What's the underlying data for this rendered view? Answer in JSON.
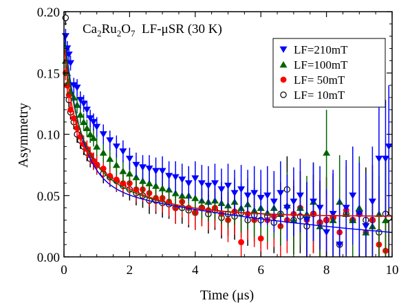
{
  "chart_data": {
    "type": "scatter",
    "title": "Ca₂Ru₂O₇ LF-μSR (30 K)",
    "title_parts": {
      "main": "Ca",
      "sub1": "2",
      "mid": "Ru",
      "sub2": "2",
      "after": "O",
      "sub3": "7",
      "rest": "  LF-μSR (30 K)"
    },
    "xlabel": "Time  (μs)",
    "ylabel": "Asymmetry",
    "xlim": [
      0,
      10
    ],
    "ylim": [
      0,
      0.2
    ],
    "xticks": [
      0,
      2,
      4,
      6,
      8,
      10
    ],
    "xtick_labels": [
      "0",
      "2",
      "4",
      "6",
      "8",
      "10"
    ],
    "yticks": [
      0,
      0.05,
      0.1,
      0.15,
      0.2
    ],
    "ytick_labels": [
      "0.00",
      "0.05",
      "0.10",
      "0.15",
      "0.20"
    ],
    "grid": false,
    "legend_position": "top-right",
    "series": [
      {
        "name": "LF=210mT",
        "color": "#0000ff",
        "marker": "triangle-down",
        "fit": {
          "A0": 0.185,
          "Aslow": 0.06,
          "lambda_fast": 2.0,
          "lambda_slow": 0.11,
          "background": 0.0
        },
        "points": [
          [
            0.05,
            0.18,
            0.006
          ],
          [
            0.1,
            0.17,
            0.006
          ],
          [
            0.15,
            0.165,
            0.006
          ],
          [
            0.2,
            0.158,
            0.006
          ],
          [
            0.3,
            0.14,
            0.006
          ],
          [
            0.4,
            0.138,
            0.007
          ],
          [
            0.5,
            0.128,
            0.007
          ],
          [
            0.6,
            0.125,
            0.007
          ],
          [
            0.7,
            0.12,
            0.007
          ],
          [
            0.8,
            0.113,
            0.007
          ],
          [
            0.9,
            0.11,
            0.007
          ],
          [
            1.0,
            0.106,
            0.008
          ],
          [
            1.2,
            0.1,
            0.008
          ],
          [
            1.4,
            0.095,
            0.008
          ],
          [
            1.6,
            0.09,
            0.009
          ],
          [
            1.8,
            0.086,
            0.009
          ],
          [
            2.0,
            0.08,
            0.009
          ],
          [
            2.2,
            0.075,
            0.01
          ],
          [
            2.4,
            0.073,
            0.01
          ],
          [
            2.6,
            0.072,
            0.011
          ],
          [
            2.8,
            0.07,
            0.011
          ],
          [
            3.0,
            0.07,
            0.012
          ],
          [
            3.2,
            0.066,
            0.012
          ],
          [
            3.4,
            0.065,
            0.013
          ],
          [
            3.6,
            0.063,
            0.013
          ],
          [
            3.8,
            0.06,
            0.014
          ],
          [
            4.0,
            0.064,
            0.014
          ],
          [
            4.2,
            0.06,
            0.015
          ],
          [
            4.4,
            0.058,
            0.016
          ],
          [
            4.6,
            0.06,
            0.016
          ],
          [
            4.8,
            0.055,
            0.017
          ],
          [
            5.0,
            0.058,
            0.018
          ],
          [
            5.2,
            0.052,
            0.019
          ],
          [
            5.4,
            0.055,
            0.02
          ],
          [
            5.6,
            0.05,
            0.021
          ],
          [
            5.8,
            0.052,
            0.022
          ],
          [
            6.0,
            0.048,
            0.023
          ],
          [
            6.2,
            0.05,
            0.024
          ],
          [
            6.4,
            0.045,
            0.025
          ],
          [
            6.6,
            0.052,
            0.026
          ],
          [
            6.8,
            0.04,
            0.027
          ],
          [
            7.0,
            0.045,
            0.028
          ],
          [
            7.2,
            0.05,
            0.03
          ],
          [
            7.4,
            0.03,
            0.031
          ],
          [
            7.6,
            0.045,
            0.032
          ],
          [
            7.8,
            0.04,
            0.034
          ],
          [
            8.0,
            0.02,
            0.035
          ],
          [
            8.2,
            0.035,
            0.036
          ],
          [
            8.4,
            0.01,
            0.038
          ],
          [
            8.6,
            0.04,
            0.039
          ],
          [
            8.8,
            0.05,
            0.04
          ],
          [
            9.0,
            0.035,
            0.042
          ],
          [
            9.2,
            0.025,
            0.043
          ],
          [
            9.4,
            0.045,
            0.045
          ],
          [
            9.6,
            0.08,
            0.046
          ],
          [
            9.8,
            0.08,
            0.048
          ],
          [
            9.9,
            0.09,
            0.05
          ]
        ]
      },
      {
        "name": "LF=100mT",
        "color": "#006400",
        "marker": "triangle-up",
        "fit": {
          "A0": 0.18,
          "Aslow": 0.062,
          "lambda_fast": 2.6,
          "lambda_slow": 0.55,
          "background": 0.033
        },
        "points": [
          [
            0.05,
            0.16,
            0.006
          ],
          [
            0.1,
            0.15,
            0.006
          ],
          [
            0.15,
            0.143,
            0.006
          ],
          [
            0.2,
            0.135,
            0.006
          ],
          [
            0.3,
            0.13,
            0.006
          ],
          [
            0.4,
            0.124,
            0.007
          ],
          [
            0.5,
            0.116,
            0.007
          ],
          [
            0.6,
            0.11,
            0.007
          ],
          [
            0.7,
            0.105,
            0.007
          ],
          [
            0.8,
            0.1,
            0.007
          ],
          [
            0.9,
            0.097,
            0.007
          ],
          [
            1.0,
            0.09,
            0.008
          ],
          [
            1.2,
            0.085,
            0.008
          ],
          [
            1.4,
            0.08,
            0.008
          ],
          [
            1.6,
            0.075,
            0.009
          ],
          [
            1.8,
            0.07,
            0.009
          ],
          [
            2.0,
            0.068,
            0.009
          ],
          [
            2.2,
            0.065,
            0.01
          ],
          [
            2.4,
            0.062,
            0.01
          ],
          [
            2.6,
            0.06,
            0.011
          ],
          [
            2.8,
            0.058,
            0.011
          ],
          [
            3.0,
            0.056,
            0.012
          ],
          [
            3.2,
            0.055,
            0.012
          ],
          [
            3.4,
            0.052,
            0.013
          ],
          [
            3.6,
            0.05,
            0.013
          ],
          [
            3.8,
            0.05,
            0.014
          ],
          [
            4.0,
            0.048,
            0.014
          ],
          [
            4.2,
            0.046,
            0.015
          ],
          [
            4.4,
            0.045,
            0.016
          ],
          [
            4.6,
            0.046,
            0.016
          ],
          [
            4.8,
            0.044,
            0.017
          ],
          [
            5.0,
            0.042,
            0.018
          ],
          [
            5.2,
            0.045,
            0.019
          ],
          [
            5.4,
            0.04,
            0.02
          ],
          [
            5.6,
            0.043,
            0.021
          ],
          [
            5.8,
            0.038,
            0.022
          ],
          [
            6.0,
            0.04,
            0.023
          ],
          [
            6.2,
            0.036,
            0.024
          ],
          [
            6.4,
            0.04,
            0.025
          ],
          [
            6.6,
            0.035,
            0.026
          ],
          [
            6.8,
            0.042,
            0.027
          ],
          [
            7.0,
            0.03,
            0.028
          ],
          [
            7.2,
            0.04,
            0.03
          ],
          [
            7.4,
            0.035,
            0.031
          ],
          [
            7.6,
            0.045,
            0.032
          ],
          [
            7.8,
            0.025,
            0.034
          ],
          [
            8.0,
            0.085,
            0.035
          ],
          [
            8.2,
            0.03,
            0.036
          ],
          [
            8.4,
            0.045,
            0.038
          ],
          [
            8.6,
            0.035,
            0.039
          ],
          [
            8.8,
            0.03,
            0.04
          ],
          [
            9.0,
            0.04,
            0.042
          ],
          [
            9.2,
            0.02,
            0.043
          ],
          [
            9.4,
            0.025,
            0.045
          ],
          [
            9.6,
            0.035,
            0.046
          ],
          [
            9.8,
            0.03,
            0.048
          ]
        ]
      },
      {
        "name": "LF=  50mT",
        "color": "#ff0000",
        "marker": "circle",
        "fit": {
          "A0": 0.175,
          "Aslow": 0.075,
          "lambda_fast": 4.0,
          "lambda_slow": 0.6,
          "background": 0.033
        },
        "points": [
          [
            0.05,
            0.15,
            0.006
          ],
          [
            0.1,
            0.14,
            0.006
          ],
          [
            0.15,
            0.132,
            0.006
          ],
          [
            0.2,
            0.12,
            0.006
          ],
          [
            0.3,
            0.113,
            0.006
          ],
          [
            0.4,
            0.105,
            0.007
          ],
          [
            0.5,
            0.098,
            0.007
          ],
          [
            0.6,
            0.092,
            0.007
          ],
          [
            0.7,
            0.088,
            0.007
          ],
          [
            0.8,
            0.083,
            0.007
          ],
          [
            0.9,
            0.078,
            0.007
          ],
          [
            1.0,
            0.075,
            0.008
          ],
          [
            1.2,
            0.072,
            0.008
          ],
          [
            1.4,
            0.066,
            0.008
          ],
          [
            1.6,
            0.063,
            0.009
          ],
          [
            1.8,
            0.06,
            0.009
          ],
          [
            2.0,
            0.06,
            0.009
          ],
          [
            2.2,
            0.055,
            0.01
          ],
          [
            2.4,
            0.055,
            0.01
          ],
          [
            2.6,
            0.052,
            0.011
          ],
          [
            2.8,
            0.048,
            0.011
          ],
          [
            3.0,
            0.048,
            0.012
          ],
          [
            3.2,
            0.045,
            0.012
          ],
          [
            3.4,
            0.04,
            0.013
          ],
          [
            3.6,
            0.045,
            0.013
          ],
          [
            3.8,
            0.04,
            0.014
          ],
          [
            4.0,
            0.036,
            0.014
          ],
          [
            4.2,
            0.04,
            0.015
          ],
          [
            4.4,
            0.038,
            0.016
          ],
          [
            4.6,
            0.04,
            0.016
          ],
          [
            4.8,
            0.035,
            0.017
          ],
          [
            5.0,
            0.03,
            0.018
          ],
          [
            5.2,
            0.037,
            0.019
          ],
          [
            5.4,
            0.012,
            0.02
          ],
          [
            5.6,
            0.035,
            0.021
          ],
          [
            5.8,
            0.03,
            0.022
          ],
          [
            6.0,
            0.015,
            0.023
          ],
          [
            6.2,
            0.03,
            0.024
          ],
          [
            6.4,
            0.033,
            0.025
          ],
          [
            6.6,
            0.025,
            0.026
          ],
          [
            6.8,
            0.03,
            0.027
          ],
          [
            7.0,
            0.035,
            0.028
          ],
          [
            7.2,
            0.04,
            0.03
          ],
          [
            7.4,
            0.03,
            0.031
          ],
          [
            7.6,
            0.035,
            0.032
          ],
          [
            7.8,
            0.028,
            0.034
          ],
          [
            8.0,
            0.03,
            0.035
          ],
          [
            8.2,
            0.032,
            0.036
          ],
          [
            8.4,
            0.02,
            0.038
          ],
          [
            8.6,
            0.038,
            0.039
          ],
          [
            8.8,
            0.03,
            0.04
          ],
          [
            9.0,
            0.035,
            0.042
          ],
          [
            9.2,
            0.02,
            0.043
          ],
          [
            9.4,
            0.03,
            0.045
          ],
          [
            9.6,
            0.01,
            0.046
          ],
          [
            9.8,
            0.005,
            0.048
          ]
        ]
      },
      {
        "name": "LF=  10mT",
        "color": "#000000",
        "marker": "open-circle",
        "fit": null,
        "points": [
          [
            0.05,
            0.195,
            0.006
          ],
          [
            0.1,
            0.14,
            0.006
          ],
          [
            0.15,
            0.128,
            0.006
          ],
          [
            0.2,
            0.118,
            0.006
          ],
          [
            0.3,
            0.11,
            0.006
          ],
          [
            0.4,
            0.1,
            0.007
          ],
          [
            0.5,
            0.095,
            0.007
          ],
          [
            0.6,
            0.09,
            0.007
          ],
          [
            0.7,
            0.085,
            0.007
          ],
          [
            0.8,
            0.08,
            0.007
          ],
          [
            0.9,
            0.078,
            0.007
          ],
          [
            1.0,
            0.075,
            0.008
          ],
          [
            1.2,
            0.068,
            0.008
          ],
          [
            1.4,
            0.065,
            0.008
          ],
          [
            1.6,
            0.062,
            0.009
          ],
          [
            1.8,
            0.058,
            0.009
          ],
          [
            2.0,
            0.055,
            0.009
          ],
          [
            2.2,
            0.052,
            0.01
          ],
          [
            2.4,
            0.05,
            0.01
          ],
          [
            2.6,
            0.046,
            0.011
          ],
          [
            2.8,
            0.046,
            0.011
          ],
          [
            3.0,
            0.044,
            0.012
          ],
          [
            3.2,
            0.043,
            0.012
          ],
          [
            3.4,
            0.04,
            0.013
          ],
          [
            3.6,
            0.04,
            0.013
          ],
          [
            3.8,
            0.038,
            0.014
          ],
          [
            4.0,
            0.036,
            0.014
          ],
          [
            4.2,
            0.04,
            0.015
          ],
          [
            4.4,
            0.035,
            0.016
          ],
          [
            4.6,
            0.038,
            0.016
          ],
          [
            4.8,
            0.032,
            0.017
          ],
          [
            5.0,
            0.035,
            0.018
          ],
          [
            5.2,
            0.033,
            0.019
          ],
          [
            5.4,
            0.036,
            0.02
          ],
          [
            5.6,
            0.03,
            0.021
          ],
          [
            5.8,
            0.034,
            0.022
          ],
          [
            6.0,
            0.03,
            0.023
          ],
          [
            6.2,
            0.033,
            0.024
          ],
          [
            6.4,
            0.028,
            0.025
          ],
          [
            6.6,
            0.035,
            0.026
          ],
          [
            6.8,
            0.055,
            0.027
          ],
          [
            7.0,
            0.03,
            0.028
          ],
          [
            7.2,
            0.033,
            0.03
          ],
          [
            7.4,
            0.025,
            0.031
          ],
          [
            7.6,
            0.035,
            0.032
          ],
          [
            7.8,
            0.028,
            0.034
          ],
          [
            8.0,
            0.03,
            0.035
          ],
          [
            8.2,
            0.032,
            0.036
          ],
          [
            8.4,
            0.01,
            0.038
          ],
          [
            8.6,
            0.035,
            0.039
          ],
          [
            8.8,
            0.03,
            0.04
          ],
          [
            9.0,
            0.035,
            0.042
          ],
          [
            9.2,
            0.03,
            0.043
          ],
          [
            9.4,
            0.03,
            0.045
          ],
          [
            9.6,
            0.02,
            0.046
          ],
          [
            9.8,
            0.035,
            0.048
          ],
          [
            9.9,
            0.032,
            0.05
          ]
        ]
      }
    ]
  }
}
